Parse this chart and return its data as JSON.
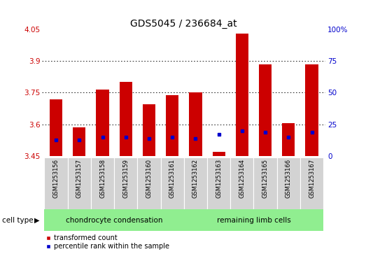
{
  "title": "GDS5045 / 236684_at",
  "samples": [
    "GSM1253156",
    "GSM1253157",
    "GSM1253158",
    "GSM1253159",
    "GSM1253160",
    "GSM1253161",
    "GSM1253162",
    "GSM1253163",
    "GSM1253164",
    "GSM1253165",
    "GSM1253166",
    "GSM1253167"
  ],
  "red_values": [
    3.72,
    3.585,
    3.765,
    3.8,
    3.695,
    3.74,
    3.75,
    3.47,
    4.03,
    3.885,
    3.605,
    3.885
  ],
  "blue_values": [
    13,
    13,
    15,
    15,
    14,
    15,
    14,
    17,
    20,
    19,
    15,
    19
  ],
  "ymin": 3.45,
  "ymax": 4.05,
  "yticks": [
    3.45,
    3.6,
    3.75,
    3.9,
    4.05
  ],
  "ytick_labels": [
    "3.45",
    "3.6",
    "3.75",
    "3.9",
    "4.05"
  ],
  "y2min": 0,
  "y2max": 100,
  "y2ticks": [
    0,
    25,
    50,
    75,
    100
  ],
  "y2tick_labels": [
    "0",
    "25",
    "50",
    "75",
    "100%"
  ],
  "bar_color": "#cc0000",
  "dot_color": "#0000cc",
  "bar_width": 0.55,
  "groups": [
    {
      "label": "chondrocyte condensation",
      "indices": [
        0,
        5
      ],
      "color": "#90ee90"
    },
    {
      "label": "remaining limb cells",
      "indices": [
        6,
        11
      ],
      "color": "#90ee90"
    }
  ],
  "cell_type_label": "cell type",
  "legend_items": [
    {
      "label": "transformed count",
      "color": "#cc0000"
    },
    {
      "label": "percentile rank within the sample",
      "color": "#0000cc"
    }
  ],
  "bg_color": "#ffffff",
  "plot_bg": "#ffffff",
  "grid_color": "#000000",
  "tick_label_color_left": "#cc0000",
  "tick_label_color_right": "#0000cc",
  "sample_bg_color": "#d3d3d3"
}
